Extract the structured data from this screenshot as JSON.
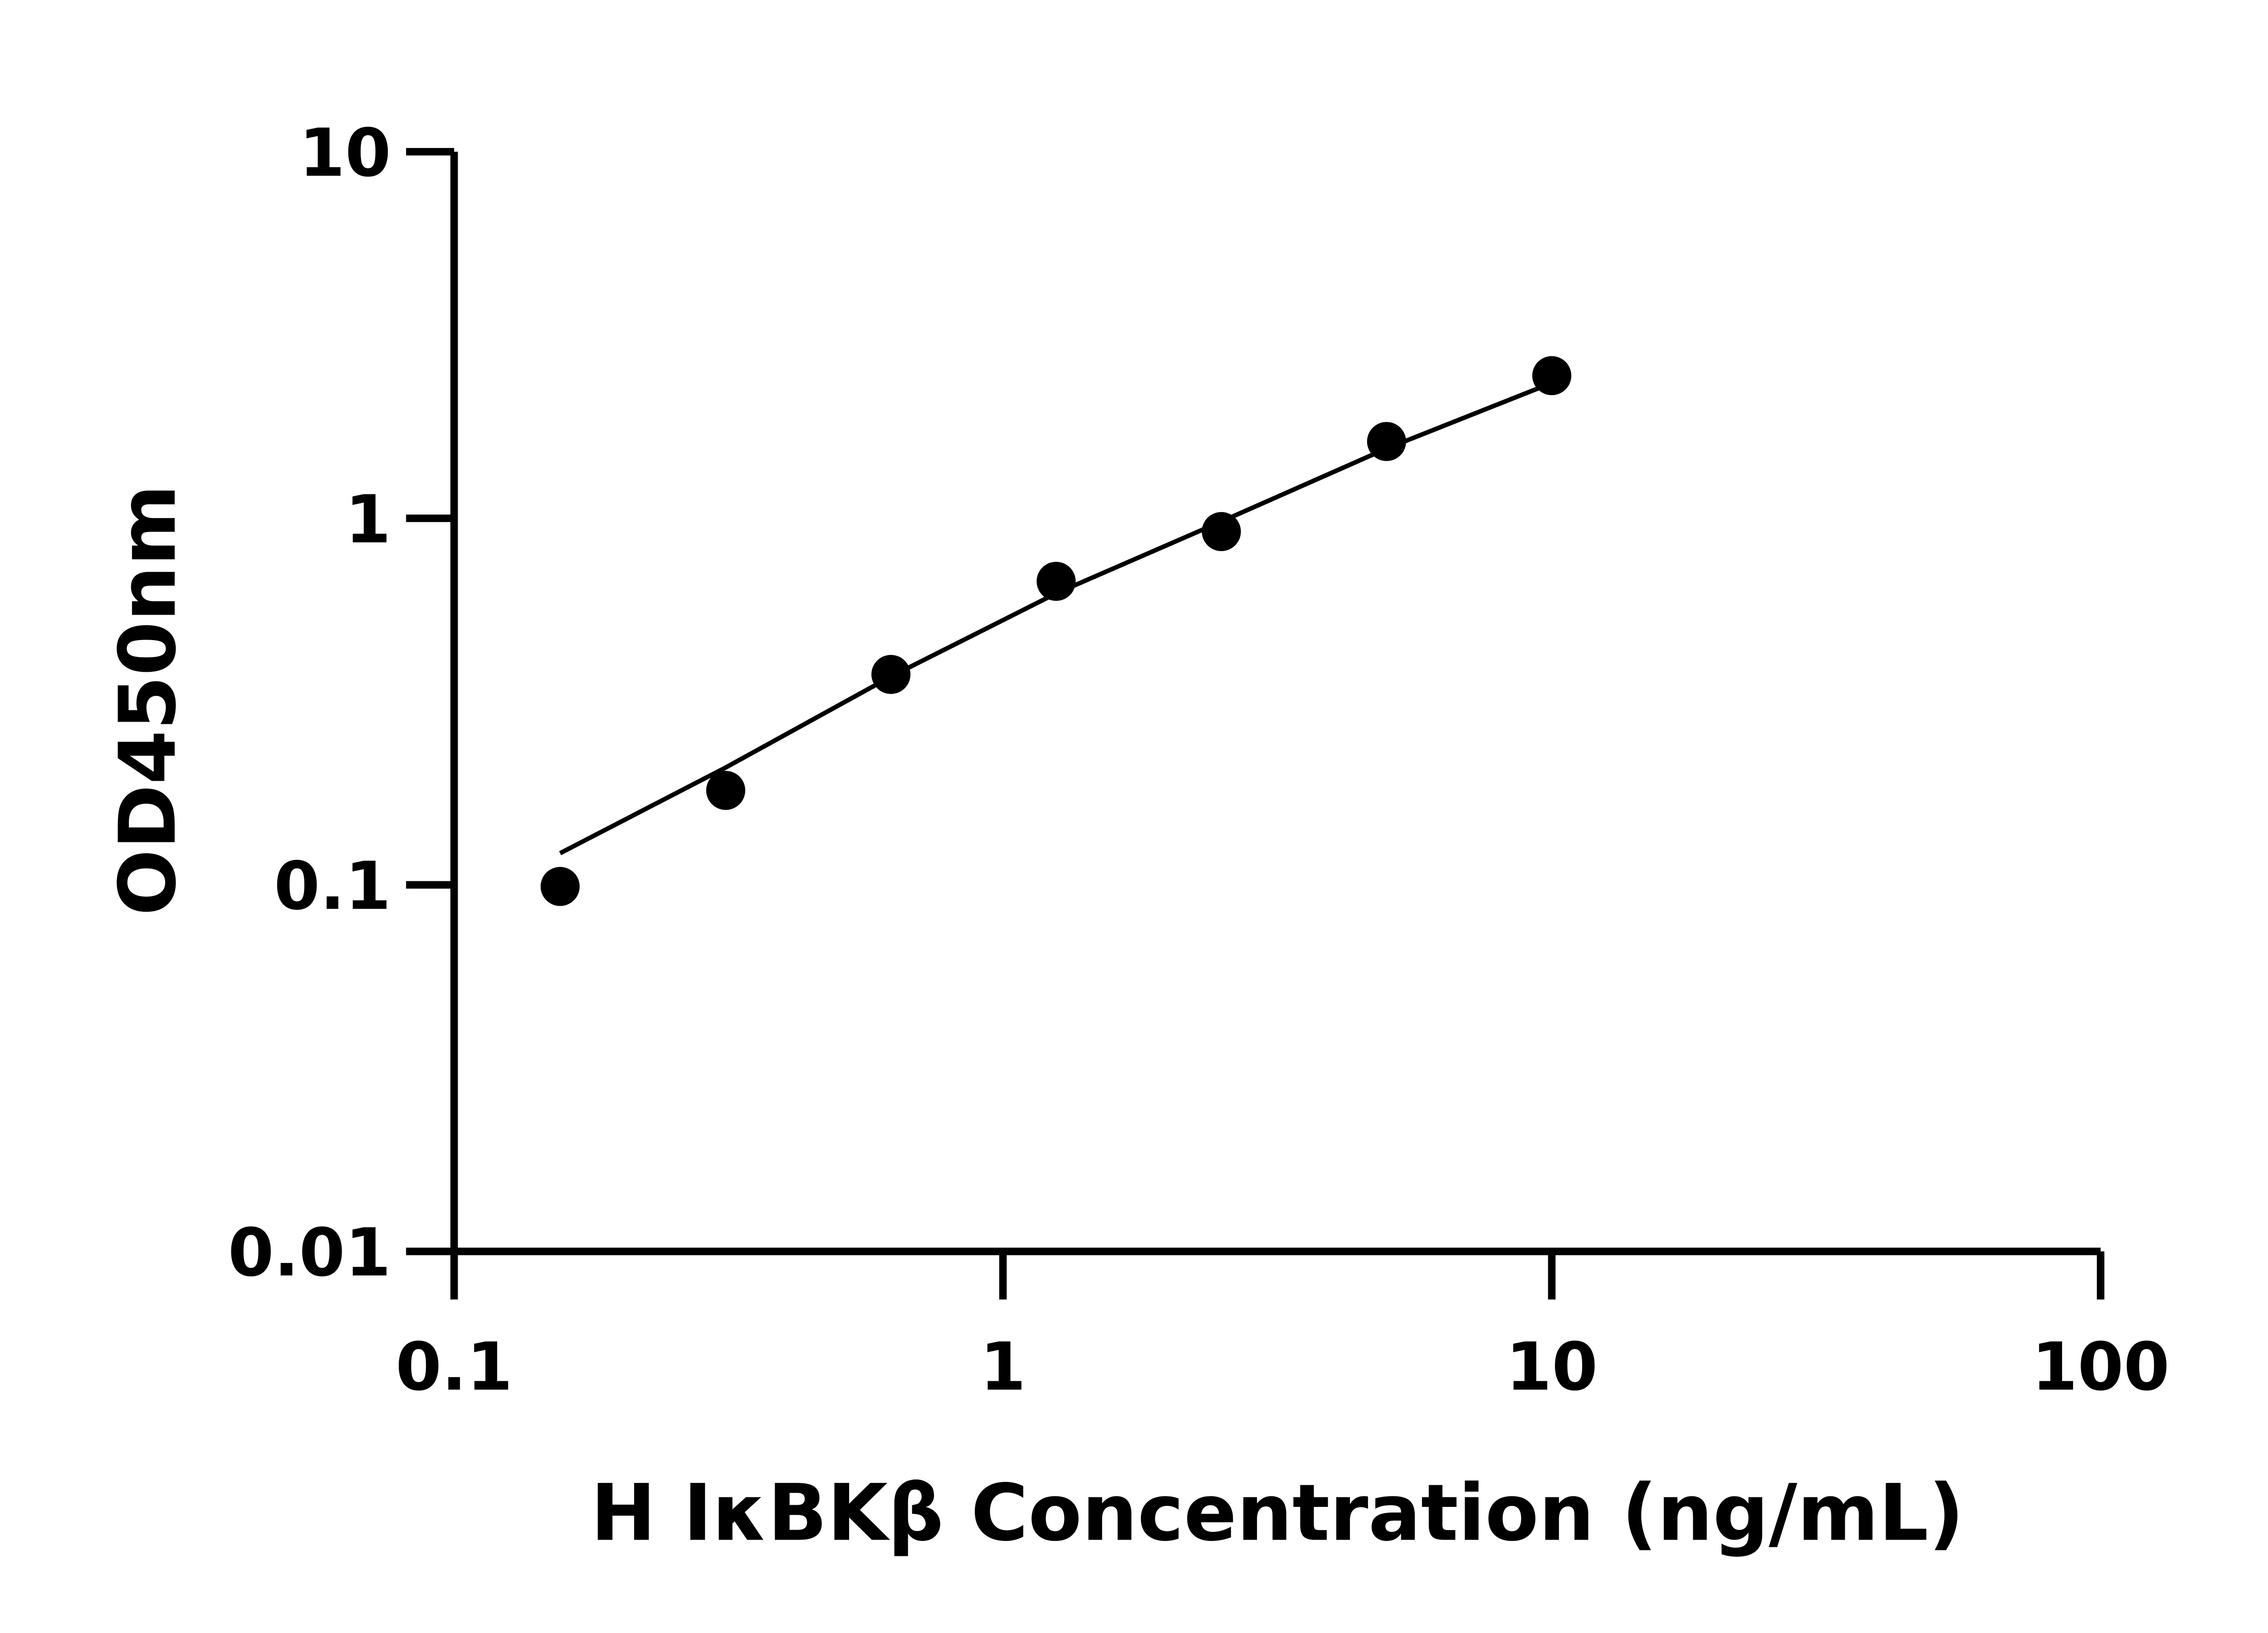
{
  "chart_data": {
    "type": "scatter",
    "title": "",
    "xlabel": "H IκBKβ Concentration (ng/mL)",
    "ylabel": "OD450nm",
    "x_scale": "log",
    "y_scale": "log",
    "xlim": [
      0.1,
      100
    ],
    "ylim": [
      0.01,
      10
    ],
    "x_ticks": [
      0.1,
      1,
      10,
      100
    ],
    "x_tick_labels": [
      "0.1",
      "1",
      "10",
      "100"
    ],
    "y_ticks": [
      0.01,
      0.1,
      1,
      10
    ],
    "y_tick_labels": [
      "0.01",
      "0.1",
      "1",
      "10"
    ],
    "grid": false,
    "legend": "none",
    "color": "#000000",
    "series": [
      {
        "type": "scatter",
        "x": [
          0.156,
          0.3125,
          0.625,
          1.25,
          2.5,
          5,
          10
        ],
        "y": [
          0.099,
          0.181,
          0.375,
          0.673,
          0.92,
          1.62,
          2.45
        ]
      },
      {
        "type": "line",
        "x": [
          0.156,
          0.3125,
          0.625,
          1.25,
          2.5,
          5,
          10
        ],
        "y": [
          0.122,
          0.209,
          0.37,
          0.624,
          0.98,
          1.55,
          2.34
        ]
      }
    ]
  }
}
